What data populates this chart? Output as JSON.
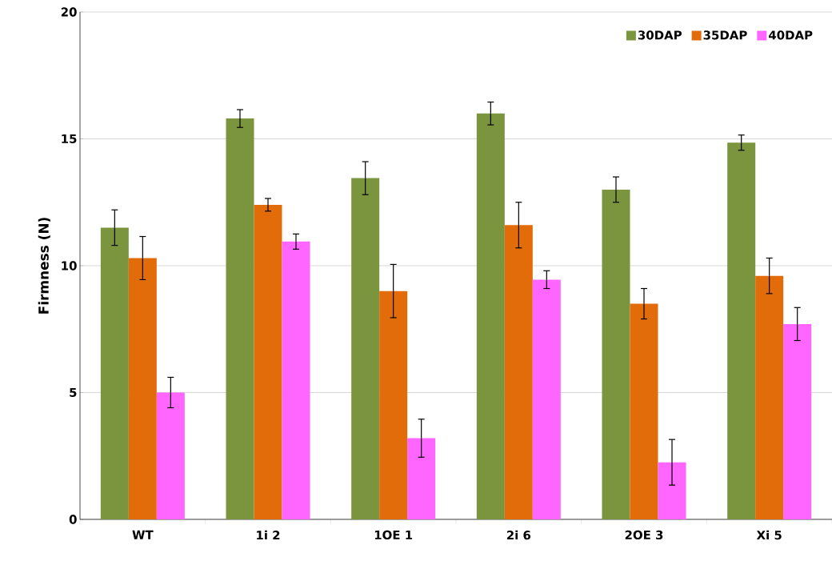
{
  "chart_data": {
    "type": "bar",
    "ylabel": "Firmness (N)",
    "categories": [
      "WT",
      "1i 2",
      "1OE 1",
      "2i 6",
      "2OE 3",
      "Xi 5"
    ],
    "series": [
      {
        "name": "30DAP",
        "color": "#7a953d",
        "values": [
          11.5,
          15.8,
          13.45,
          16.0,
          13.0,
          14.85
        ],
        "errors": [
          0.7,
          0.35,
          0.65,
          0.45,
          0.5,
          0.3
        ]
      },
      {
        "name": "35DAP",
        "color": "#e36c0a",
        "values": [
          10.3,
          12.4,
          9.0,
          11.6,
          8.5,
          9.6
        ],
        "errors": [
          0.85,
          0.25,
          1.05,
          0.9,
          0.6,
          0.7
        ]
      },
      {
        "name": "40DAP",
        "color": "#ff66ff",
        "values": [
          5.0,
          10.95,
          3.2,
          9.45,
          2.25,
          7.7
        ],
        "errors": [
          0.6,
          0.3,
          0.75,
          0.35,
          0.9,
          0.65
        ]
      }
    ],
    "ylim": [
      0,
      20
    ],
    "yticks": [
      0,
      5,
      10,
      15,
      20
    ],
    "grid": "y",
    "legend": "top right"
  }
}
